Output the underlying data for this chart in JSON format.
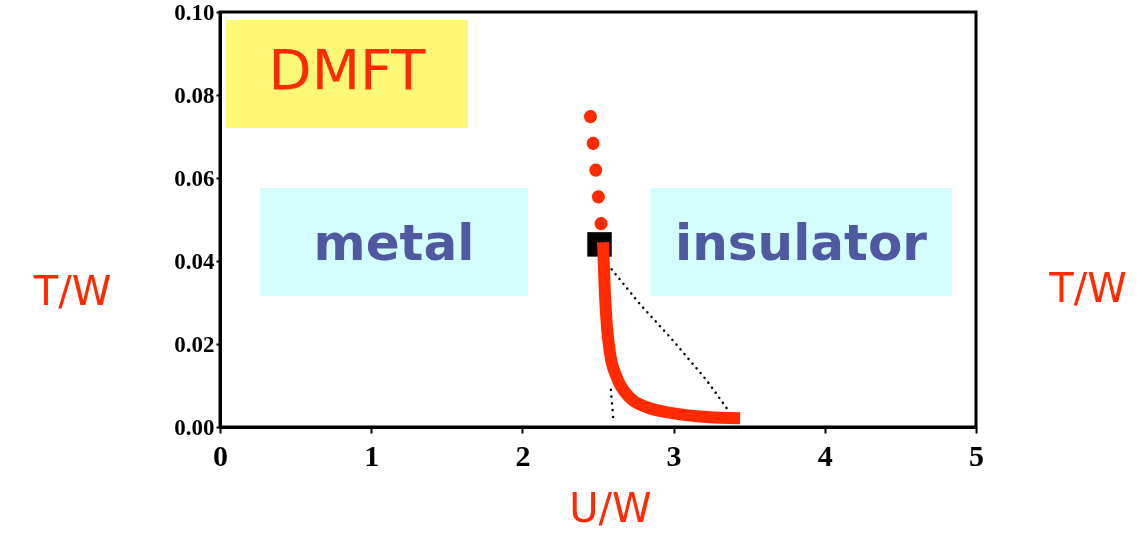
{
  "chart_data": {
    "type": "line",
    "title": "DMFT",
    "xlabel": "U/W",
    "ylabel": "T/W",
    "annotations": [
      "metal",
      "insulator",
      "T/W"
    ],
    "xlim": [
      0,
      5
    ],
    "ylim": [
      0,
      0.1
    ],
    "xticks": [
      0,
      1,
      2,
      3,
      4,
      5
    ],
    "yticks": [
      {
        "value": 0,
        "label": "0.00"
      },
      0.02,
      0.04,
      0.06,
      0.08,
      {
        "value": 0.1,
        "label": "0.10"
      }
    ],
    "grid": false,
    "series": [
      {
        "type": "line",
        "color": "#000000",
        "line_style": "dotted",
        "x": [
          2.59,
          2.78,
          3.0,
          3.22,
          3.35
        ],
        "values": [
          0.038,
          0.0295,
          0.0207,
          0.0112,
          0.0046
        ]
      },
      {
        "type": "line",
        "color": "#000000",
        "line_style": "dotted",
        "x": [
          2.585,
          2.6
        ],
        "values": [
          0.009,
          0.0024
        ]
      },
      {
        "type": "scatter",
        "color": "#000000",
        "marker": "square",
        "x": [
          2.51
        ],
        "values": [
          0.044
        ]
      },
      {
        "type": "line",
        "color": "#ff2a00",
        "line_style": "dotted",
        "x": [
          2.52,
          2.45
        ],
        "values": [
          0.049,
          0.0748
        ]
      },
      {
        "type": "line",
        "color": "#ff2a00",
        "line_style": "solid",
        "x": [
          2.533,
          2.546,
          2.56,
          2.58,
          2.625,
          2.71,
          2.82,
          3.0,
          3.22,
          3.44
        ],
        "values": [
          0.0445,
          0.0319,
          0.0238,
          0.0176,
          0.0119,
          0.0071,
          0.0048,
          0.0033,
          0.0024,
          0.0021
        ]
      }
    ]
  }
}
